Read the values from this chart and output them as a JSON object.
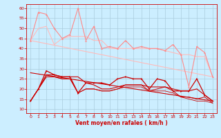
{
  "x": [
    0,
    1,
    2,
    3,
    4,
    5,
    6,
    7,
    8,
    9,
    10,
    11,
    12,
    13,
    14,
    15,
    16,
    17,
    18,
    19,
    20,
    21,
    22,
    23
  ],
  "line1": [
    44,
    58,
    57,
    50,
    45,
    47,
    60,
    44,
    51,
    40,
    41,
    40,
    44,
    40,
    41,
    40,
    40,
    39,
    42,
    37,
    21,
    41,
    38,
    26
  ],
  "line2": [
    44,
    50,
    51,
    42,
    45,
    46,
    46,
    46,
    44,
    44,
    40,
    40,
    40,
    40,
    40,
    40,
    40,
    39,
    38,
    37,
    37,
    36,
    36,
    26
  ],
  "line3": [
    14,
    20,
    29,
    27,
    26,
    26,
    18,
    23,
    23,
    23,
    22,
    25,
    26,
    25,
    25,
    20,
    25,
    24,
    19,
    19,
    19,
    25,
    17,
    14
  ],
  "line4": [
    14,
    20,
    27,
    27,
    26,
    26,
    26,
    23,
    22,
    20,
    20,
    21,
    22,
    22,
    22,
    21,
    21,
    21,
    20,
    19,
    19,
    20,
    17,
    14
  ],
  "line5": [
    14,
    20,
    26,
    26,
    25,
    25,
    18,
    20,
    20,
    19,
    19,
    20,
    22,
    22,
    22,
    19,
    20,
    21,
    19,
    16,
    16,
    15,
    16,
    13
  ],
  "line6": [
    14,
    20,
    26,
    26,
    25,
    25,
    18,
    20,
    20,
    19,
    19,
    20,
    21,
    21,
    21,
    19,
    19,
    19,
    18,
    16,
    15,
    14,
    14,
    13
  ],
  "trend1_x": [
    0,
    23
  ],
  "trend1_y": [
    44,
    26
  ],
  "trend2_x": [
    0,
    23
  ],
  "trend2_y": [
    28,
    14
  ],
  "background_color": "#cceeff",
  "grid_color": "#aaccdd",
  "line1_color": "#ff8888",
  "line2_color": "#ffaaaa",
  "line3_color": "#cc0000",
  "line4_color": "#cc0000",
  "line5_color": "#cc0000",
  "line6_color": "#cc0000",
  "trend1_color": "#ffbbbb",
  "trend2_color": "#cc0000",
  "tick_color": "#cc0000",
  "xlabel": "Vent moyen/en rafales ( km/h )",
  "ylim": [
    8,
    62
  ],
  "xlim": [
    -0.5,
    23.5
  ],
  "yticks": [
    10,
    15,
    20,
    25,
    30,
    35,
    40,
    45,
    50,
    55,
    60
  ],
  "xticks": [
    0,
    1,
    2,
    3,
    4,
    5,
    6,
    7,
    8,
    9,
    10,
    11,
    12,
    13,
    14,
    15,
    16,
    17,
    18,
    19,
    20,
    21,
    22,
    23
  ]
}
